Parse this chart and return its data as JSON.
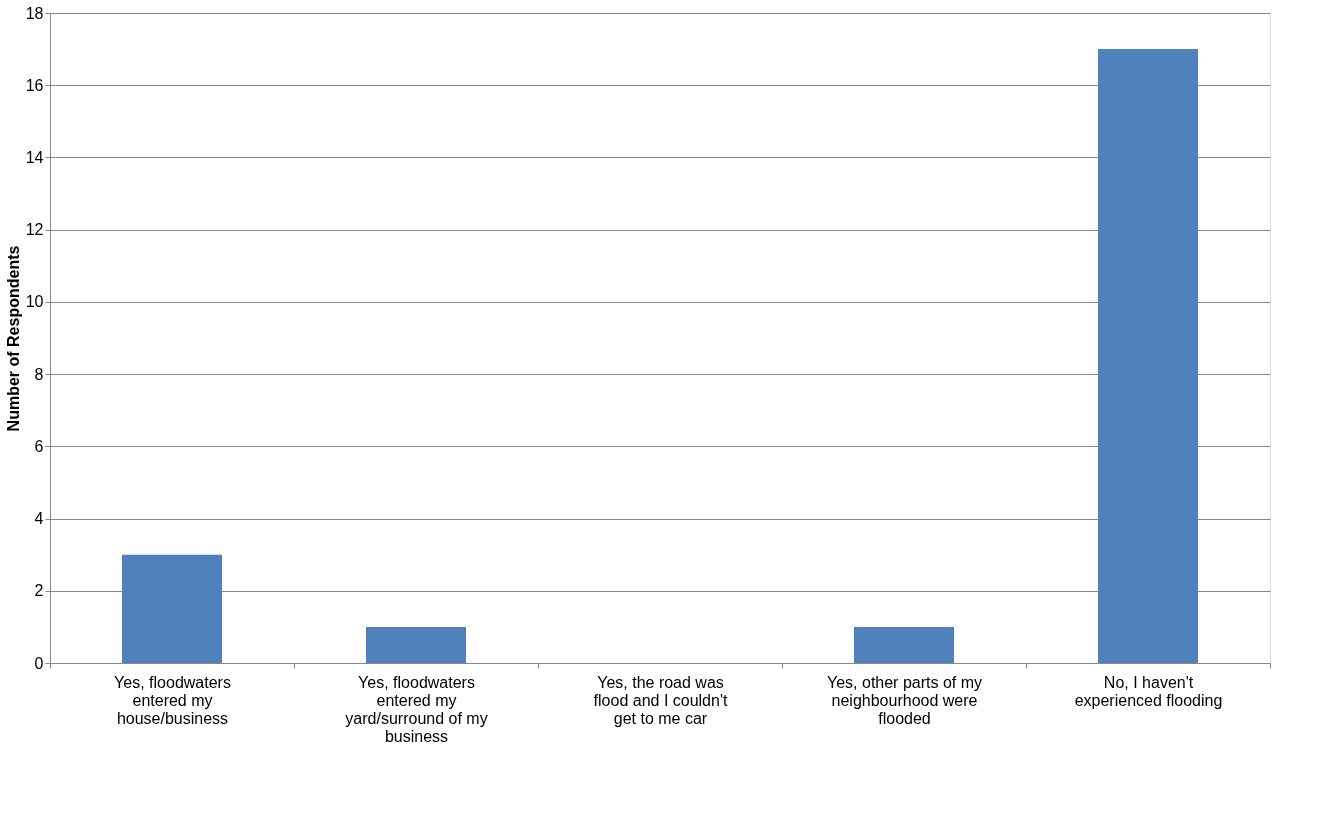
{
  "chart_data": {
    "type": "bar",
    "ylabel": "Number of Respondents",
    "categories": [
      "Yes, floodwaters entered my house/business",
      "Yes, floodwaters entered my yard/surround of my business",
      "Yes, the road was flood and I couldn't get to me car",
      "Yes, other parts of my neighbourhood were flooded",
      "No, I haven't experienced flooding"
    ],
    "values": [
      3,
      1,
      0,
      1,
      17
    ],
    "color": "#4f81bd",
    "ylim": [
      0,
      18
    ],
    "yticks": [
      0,
      2,
      4,
      6,
      8,
      10,
      12,
      14,
      16,
      18
    ],
    "grid": "y"
  }
}
